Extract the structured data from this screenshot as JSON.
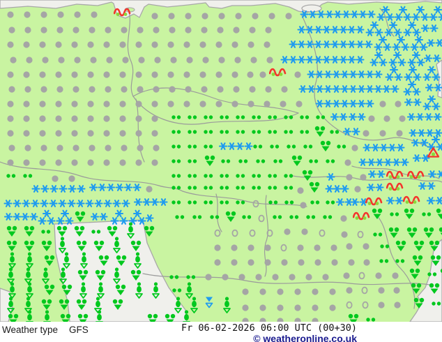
{
  "footer": {
    "product_label": "Weather type",
    "model": "GFS",
    "datetime": "Fr 06-02-2026 06:00 UTC (00+30)",
    "copyright": "© weatheronline.co.uk"
  },
  "map": {
    "colors": {
      "land": "#c9f4a1",
      "sea": "#f0f0ec",
      "coast": "#a8a8a8",
      "border": "#9b9b9b",
      "cloud_gray": "#a5a5a5",
      "snow_blue": "#1e9bf0",
      "rain_green": "#00c81e",
      "freezing_red": "#f4342c",
      "freezing_dot_green": "#8ad83a",
      "copyright_navy": "#1b1b8f"
    },
    "symbol_legend": {
      "c": "cloudy",
      "o": "partly-cloudy",
      "s1": "snow",
      "s2": "snow-moderate",
      "s3": "snow-heavy",
      "d": "drizzle",
      "tr": "rain-shower",
      "hv": "heavy-shower",
      "fz": "freezing-rain",
      "fzt": "shower-warning-triangle",
      "sl": "sleet-shower"
    },
    "symbol_runs": [
      [
        "c",
        8,
        14,
        6,
        24
      ],
      [
        "fz",
        163,
        8,
        1,
        0
      ],
      [
        "c",
        215,
        16,
        9,
        24
      ],
      [
        "s1",
        430,
        14,
        9,
        12
      ],
      [
        "s3",
        540,
        8,
        4,
        25
      ],
      [
        "c",
        10,
        36,
        17,
        23
      ],
      [
        "s1",
        426,
        36,
        8,
        12
      ],
      [
        "s3",
        524,
        30,
        3,
        27
      ],
      [
        "s2",
        604,
        34,
        1,
        0
      ],
      [
        "c",
        8,
        57,
        17,
        23
      ],
      [
        "s1",
        414,
        57,
        10,
        12
      ],
      [
        "s3",
        536,
        51,
        3,
        26
      ],
      [
        "s2",
        612,
        55,
        1,
        0
      ],
      [
        "c",
        12,
        79,
        16,
        23
      ],
      [
        "c",
        380,
        79,
        1,
        0
      ],
      [
        "s1",
        402,
        79,
        10,
        12
      ],
      [
        "s3",
        530,
        73,
        3,
        27
      ],
      [
        "s2",
        608,
        77,
        1,
        0
      ],
      [
        "c",
        8,
        100,
        15,
        23
      ],
      [
        "c",
        352,
        100,
        2,
        18
      ],
      [
        "fz",
        386,
        94,
        1,
        0
      ],
      [
        "c",
        420,
        100,
        1,
        0
      ],
      [
        "s1",
        440,
        100,
        9,
        12
      ],
      [
        "s3",
        552,
        94,
        3,
        27
      ],
      [
        "c",
        10,
        121,
        18,
        23
      ],
      [
        "s1",
        428,
        121,
        12,
        12
      ],
      [
        "s3",
        578,
        115,
        1,
        0
      ],
      [
        "s2",
        610,
        119,
        1,
        0
      ],
      [
        "c",
        8,
        142,
        18,
        23
      ],
      [
        "c",
        422,
        142,
        1,
        0
      ],
      [
        "s1",
        452,
        142,
        7,
        12
      ],
      [
        "c",
        542,
        142,
        2,
        22
      ],
      [
        "s2",
        580,
        140,
        1,
        0
      ],
      [
        "s3",
        606,
        136,
        1,
        0
      ],
      [
        "c",
        8,
        163,
        10,
        23
      ],
      [
        "d",
        245,
        163,
        10,
        23
      ],
      [
        "s2",
        474,
        161,
        2,
        26
      ],
      [
        "c",
        526,
        163,
        3,
        22
      ],
      [
        "s2",
        584,
        161,
        2,
        25
      ],
      [
        "c",
        8,
        184,
        10,
        23
      ],
      [
        "d",
        245,
        184,
        9,
        23
      ],
      [
        "tr",
        450,
        180,
        1,
        0
      ],
      [
        "d",
        472,
        184,
        1,
        0
      ],
      [
        "s2",
        492,
        182,
        1,
        0
      ],
      [
        "c",
        518,
        184,
        3,
        24
      ],
      [
        "s1",
        586,
        184,
        4,
        12
      ],
      [
        "c",
        10,
        205,
        10,
        23
      ],
      [
        "d",
        245,
        205,
        3,
        23
      ],
      [
        "s2",
        314,
        203,
        2,
        24
      ],
      [
        "d",
        362,
        205,
        4,
        24
      ],
      [
        "tr",
        458,
        201,
        1,
        0
      ],
      [
        "d",
        482,
        205,
        1,
        0
      ],
      [
        "c",
        502,
        205,
        1,
        0
      ],
      [
        "s1",
        520,
        205,
        5,
        12
      ],
      [
        "s2",
        590,
        198,
        1,
        0
      ],
      [
        "s3",
        612,
        194,
        1,
        0
      ],
      [
        "c",
        8,
        226,
        10,
        23
      ],
      [
        "d",
        245,
        226,
        2,
        23
      ],
      [
        "tr",
        292,
        222,
        1,
        0
      ],
      [
        "d",
        316,
        226,
        4,
        25
      ],
      [
        "tr",
        417,
        222,
        1,
        0
      ],
      [
        "d",
        442,
        226,
        2,
        24
      ],
      [
        "c",
        492,
        226,
        1,
        0
      ],
      [
        "s1",
        514,
        226,
        6,
        12
      ],
      [
        "s2",
        592,
        220,
        1,
        0
      ],
      [
        "fzt",
        612,
        210,
        1,
        0
      ],
      [
        "d",
        8,
        247,
        1,
        0
      ],
      [
        "d",
        32,
        247,
        1,
        0
      ],
      [
        "c",
        72,
        249,
        2,
        24
      ],
      [
        "d",
        245,
        247,
        8,
        23
      ],
      [
        "tr",
        432,
        243,
        1,
        0
      ],
      [
        "s1",
        468,
        247,
        1,
        0
      ],
      [
        "c",
        494,
        247,
        2,
        20
      ],
      [
        "s2",
        528,
        243,
        1,
        0
      ],
      [
        "fz",
        554,
        241,
        1,
        0
      ],
      [
        "fz",
        584,
        241,
        1,
        0
      ],
      [
        "s2",
        614,
        243,
        1,
        0
      ],
      [
        "s1",
        45,
        264,
        6,
        13
      ],
      [
        "s2",
        128,
        262,
        3,
        25
      ],
      [
        "c",
        207,
        264,
        1,
        0
      ],
      [
        "d",
        245,
        264,
        8,
        23
      ],
      [
        "c",
        424,
        266,
        1,
        0
      ],
      [
        "tr",
        442,
        260,
        1,
        0
      ],
      [
        "s1",
        466,
        264,
        3,
        11
      ],
      [
        "c",
        506,
        264,
        1,
        0
      ],
      [
        "s2",
        526,
        262,
        1,
        0
      ],
      [
        "fz",
        554,
        258,
        1,
        0
      ],
      [
        "s2",
        600,
        260,
        1,
        0
      ],
      [
        "s1",
        5,
        285,
        14,
        13
      ],
      [
        "s2",
        192,
        283,
        2,
        24
      ],
      [
        "d",
        245,
        285,
        5,
        23
      ],
      [
        "o",
        360,
        285,
        1,
        0
      ],
      [
        "d",
        384,
        285,
        2,
        23
      ],
      [
        "c",
        428,
        287,
        1,
        0
      ],
      [
        "d",
        444,
        285,
        2,
        22
      ],
      [
        "s2",
        482,
        283,
        2,
        21
      ],
      [
        "fz",
        524,
        279,
        1,
        0
      ],
      [
        "s2",
        554,
        281,
        1,
        0
      ],
      [
        "fz",
        578,
        277,
        1,
        0
      ],
      [
        "s2",
        612,
        281,
        1,
        0
      ],
      [
        "s2",
        6,
        304,
        2,
        24
      ],
      [
        "s3",
        54,
        300,
        2,
        26
      ],
      [
        "tr",
        106,
        302,
        1,
        0
      ],
      [
        "s2",
        130,
        304,
        1,
        0
      ],
      [
        "s3",
        158,
        300,
        2,
        26
      ],
      [
        "s1",
        208,
        306,
        1,
        0
      ],
      [
        "d",
        250,
        306,
        2,
        25
      ],
      [
        "d",
        300,
        306,
        1,
        0
      ],
      [
        "tr",
        322,
        302,
        1,
        0
      ],
      [
        "d",
        346,
        306,
        1,
        0
      ],
      [
        "o",
        368,
        306,
        1,
        0
      ],
      [
        "d",
        390,
        306,
        4,
        24
      ],
      [
        "c",
        486,
        306,
        1,
        0
      ],
      [
        "fz",
        506,
        300,
        1,
        0
      ],
      [
        "tr",
        532,
        298,
        1,
        0
      ],
      [
        "d",
        558,
        302,
        1,
        0
      ],
      [
        "tr",
        578,
        298,
        1,
        0
      ],
      [
        "d",
        604,
        302,
        1,
        0
      ],
      [
        "tr",
        624,
        298,
        1,
        0
      ],
      [
        "tr",
        8,
        323,
        2,
        25
      ],
      [
        "d",
        58,
        327,
        1,
        0
      ],
      [
        "tr",
        80,
        323,
        2,
        25
      ],
      [
        "d",
        130,
        327,
        1,
        0
      ],
      [
        "tr",
        152,
        323,
        1,
        0
      ],
      [
        "hv",
        180,
        318,
        1,
        0
      ],
      [
        "tr",
        205,
        323,
        1,
        0
      ],
      [
        "o",
        305,
        327,
        4,
        25
      ],
      [
        "c",
        405,
        325,
        2,
        25
      ],
      [
        "o",
        455,
        327,
        1,
        0
      ],
      [
        "c",
        487,
        329,
        1,
        0
      ],
      [
        "o",
        510,
        329,
        1,
        0
      ],
      [
        "d",
        534,
        331,
        1,
        0
      ],
      [
        "tr",
        556,
        325,
        1,
        0
      ],
      [
        "tr",
        582,
        325,
        2,
        24
      ],
      [
        "tr",
        628,
        325,
        1,
        0
      ],
      [
        "tr",
        8,
        344,
        3,
        25
      ],
      [
        "hv",
        82,
        339,
        1,
        0
      ],
      [
        "tr",
        108,
        344,
        2,
        25
      ],
      [
        "hv",
        160,
        339,
        1,
        0
      ],
      [
        "tr",
        186,
        344,
        1,
        0
      ],
      [
        "c",
        305,
        348,
        4,
        24
      ],
      [
        "o",
        400,
        348,
        1,
        0
      ],
      [
        "c",
        424,
        348,
        2,
        24
      ],
      [
        "c",
        472,
        348,
        1,
        0
      ],
      [
        "c",
        494,
        346,
        2,
        24
      ],
      [
        "d",
        544,
        348,
        1,
        0
      ],
      [
        "tr",
        566,
        344,
        1,
        0
      ],
      [
        "tr",
        592,
        344,
        2,
        22
      ],
      [
        "hv",
        10,
        361,
        2,
        25
      ],
      [
        "tr",
        62,
        365,
        1,
        0
      ],
      [
        "hv",
        88,
        361,
        2,
        25
      ],
      [
        "tr",
        140,
        365,
        2,
        25
      ],
      [
        "hv",
        190,
        361,
        1,
        0
      ],
      [
        "c",
        305,
        369,
        8,
        24
      ],
      [
        "c",
        497,
        369,
        2,
        22
      ],
      [
        "d",
        543,
        369,
        1,
        0
      ],
      [
        "d",
        566,
        369,
        1,
        0
      ],
      [
        "tr",
        590,
        365,
        1,
        0
      ],
      [
        "tr",
        616,
        365,
        1,
        0
      ],
      [
        "hv",
        8,
        383,
        4,
        25
      ],
      [
        "tr",
        110,
        386,
        2,
        25
      ],
      [
        "hv",
        160,
        383,
        1,
        0
      ],
      [
        "tr",
        186,
        386,
        1,
        0
      ],
      [
        "d",
        242,
        392,
        2,
        24
      ],
      [
        "c",
        292,
        390,
        8,
        24
      ],
      [
        "c",
        490,
        388,
        1,
        0
      ],
      [
        "o",
        512,
        388,
        1,
        0
      ],
      [
        "c",
        536,
        388,
        2,
        24
      ],
      [
        "tr",
        586,
        384,
        1,
        0
      ],
      [
        "d",
        612,
        388,
        1,
        0
      ],
      [
        "tr",
        630,
        384,
        1,
        0
      ],
      [
        "hv",
        10,
        404,
        2,
        25
      ],
      [
        "tr",
        62,
        407,
        2,
        25
      ],
      [
        "hv",
        112,
        404,
        2,
        25
      ],
      [
        "tr",
        164,
        407,
        1,
        0
      ],
      [
        "hv",
        192,
        404,
        1,
        0
      ],
      [
        "hv",
        216,
        404,
        1,
        0
      ],
      [
        "d",
        246,
        411,
        1,
        0
      ],
      [
        "hv",
        264,
        404,
        1,
        0
      ],
      [
        "c",
        345,
        411,
        6,
        25
      ],
      [
        "c",
        494,
        409,
        1,
        0
      ],
      [
        "o",
        516,
        409,
        1,
        0
      ],
      [
        "c",
        540,
        409,
        2,
        22
      ],
      [
        "tr",
        588,
        405,
        1,
        0
      ],
      [
        "tr",
        614,
        405,
        1,
        0
      ],
      [
        "hv",
        8,
        425,
        2,
        25
      ],
      [
        "tr",
        58,
        428,
        3,
        25
      ],
      [
        "hv",
        133,
        425,
        1,
        0
      ],
      [
        "tr",
        160,
        428,
        1,
        0
      ],
      [
        "hv",
        248,
        425,
        2,
        23
      ],
      [
        "sl",
        293,
        424,
        1,
        0
      ],
      [
        "hv",
        318,
        425,
        1,
        0
      ],
      [
        "c",
        345,
        434,
        6,
        25
      ],
      [
        "o",
        494,
        430,
        2,
        23
      ],
      [
        "c",
        540,
        430,
        2,
        23
      ],
      [
        "tr",
        592,
        426,
        1,
        0
      ],
      [
        "d",
        618,
        430,
        1,
        0
      ],
      [
        "tr",
        10,
        449,
        1,
        0
      ],
      [
        "hv",
        35,
        444,
        2,
        25
      ],
      [
        "tr",
        85,
        449,
        2,
        25
      ],
      [
        "hv",
        135,
        444,
        1,
        0
      ],
      [
        "tr",
        210,
        449,
        2,
        25
      ],
      [
        "hv",
        260,
        444,
        1,
        0
      ],
      [
        "c",
        345,
        453,
        5,
        25
      ],
      [
        "tr",
        498,
        449,
        1,
        0
      ],
      [
        "d",
        524,
        453,
        1,
        0
      ]
    ]
  }
}
